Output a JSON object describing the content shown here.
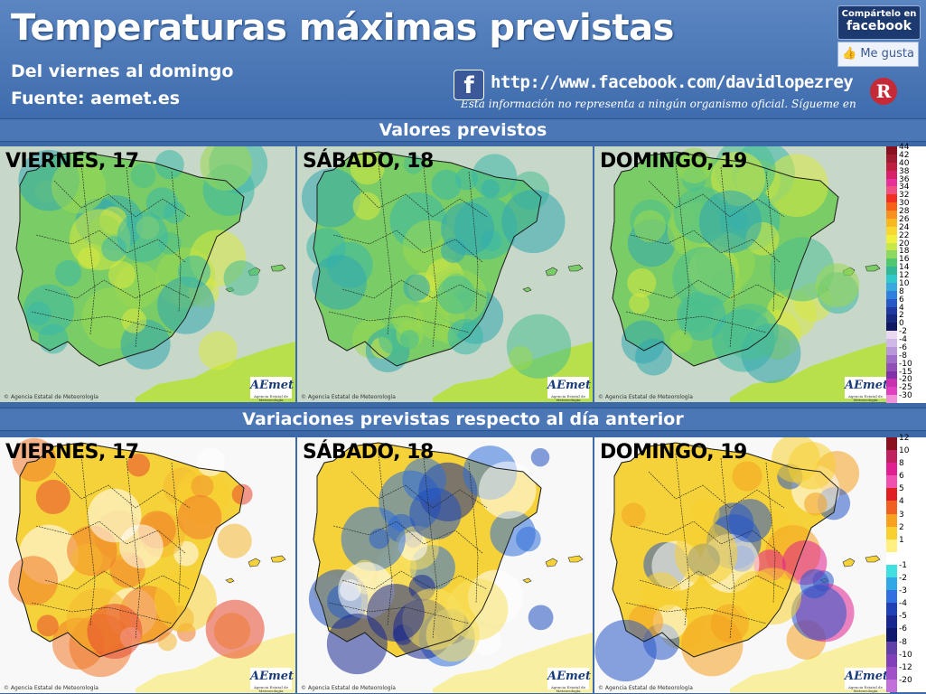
{
  "header": {
    "title": "Temperaturas máximas previstas",
    "subtitle": "Del viernes al domingo",
    "source": "Fuente: aemet.es",
    "facebook_url": "http://www.facebook.com/davidlopezrey",
    "disclaimer": "Esta información no representa a ningún organismo oficial. Sígueme en",
    "share_top": "Compártelo en",
    "share_bottom": "facebook",
    "like_label": "Me gusta",
    "fb_icon_letter": "f",
    "logo_letter": "R"
  },
  "sections": {
    "forecast_title": "Valores previstos",
    "variation_title": "Variaciones previstas respecto al día anterior"
  },
  "panels": {
    "forecast": [
      {
        "day": "VIERNES, 17",
        "credit": "© Agencia Estatal de Meteorología",
        "brand": "AEmet",
        "brand_sub": "Agencia Estatal de Meteorología"
      },
      {
        "day": "SÁBADO, 18",
        "credit": "© Agencia Estatal de Meteorología",
        "brand": "AEmet",
        "brand_sub": "Agencia Estatal de Meteorología"
      },
      {
        "day": "DOMINGO, 19",
        "credit": "© Agencia Estatal de Meteorología",
        "brand": "AEmet",
        "brand_sub": "Agencia Estatal de Meteorología"
      }
    ],
    "variation": [
      {
        "day": "VIERNES, 17",
        "credit": "© Agencia Estatal de Meteorología",
        "brand": "AEmet",
        "brand_sub": "Agencia Estatal de Meteorología"
      },
      {
        "day": "SÁBADO, 18",
        "credit": "© Agencia Estatal de Meteorología",
        "brand": "AEmet",
        "brand_sub": "Agencia Estatal de Meteorología"
      },
      {
        "day": "DOMINGO, 19",
        "credit": "© Agencia Estatal de Meteorología",
        "brand": "AEmet",
        "brand_sub": "Agencia Estatal de Meteorología"
      }
    ]
  },
  "legend_forecast": [
    {
      "label": "44",
      "color": "#8a1020"
    },
    {
      "label": "42",
      "color": "#a01a30"
    },
    {
      "label": "40",
      "color": "#c02040"
    },
    {
      "label": "38",
      "color": "#d8206a"
    },
    {
      "label": "36",
      "color": "#e8309a"
    },
    {
      "label": "34",
      "color": "#f05080"
    },
    {
      "label": "32",
      "color": "#f03020"
    },
    {
      "label": "30",
      "color": "#f86018"
    },
    {
      "label": "28",
      "color": "#f89020"
    },
    {
      "label": "26",
      "color": "#f8b820"
    },
    {
      "label": "24",
      "color": "#f8d830"
    },
    {
      "label": "22",
      "color": "#f0f040"
    },
    {
      "label": "20",
      "color": "#c8e848"
    },
    {
      "label": "18",
      "color": "#8cd860"
    },
    {
      "label": "16",
      "color": "#50c870"
    },
    {
      "label": "14",
      "color": "#30b898"
    },
    {
      "label": "12",
      "color": "#30c8c8"
    },
    {
      "label": "10",
      "color": "#38a8e0"
    },
    {
      "label": "8",
      "color": "#3080e0"
    },
    {
      "label": "6",
      "color": "#2858c8"
    },
    {
      "label": "4",
      "color": "#2038a0"
    },
    {
      "label": "2",
      "color": "#182880"
    },
    {
      "label": "0",
      "color": "#101860"
    },
    {
      "label": "-2",
      "color": "#e8d8f0"
    },
    {
      "label": "-4",
      "color": "#d0b8e8"
    },
    {
      "label": "-6",
      "color": "#b898d8"
    },
    {
      "label": "-8",
      "color": "#a070c8"
    },
    {
      "label": "-10",
      "color": "#9050b8"
    },
    {
      "label": "-15",
      "color": "#8030a8"
    },
    {
      "label": "-20",
      "color": "#c830b0"
    },
    {
      "label": "-25",
      "color": "#e040c0"
    },
    {
      "label": "-30",
      "color": "#f090d8"
    }
  ],
  "legend_variation": [
    {
      "label": "12",
      "color": "#8a1020"
    },
    {
      "label": "10",
      "color": "#c02060"
    },
    {
      "label": "8",
      "color": "#e02090"
    },
    {
      "label": "6",
      "color": "#f050b0"
    },
    {
      "label": "5",
      "color": "#e02020"
    },
    {
      "label": "4",
      "color": "#f06020"
    },
    {
      "label": "3",
      "color": "#f8a020"
    },
    {
      "label": "2",
      "color": "#f8d030"
    },
    {
      "label": "1",
      "color": "#fff080"
    },
    {
      "label": "",
      "color": "#ffffff"
    },
    {
      "label": "-1",
      "color": "#40e0e0"
    },
    {
      "label": "-2",
      "color": "#30a8e8"
    },
    {
      "label": "-3",
      "color": "#3070e0"
    },
    {
      "label": "-4",
      "color": "#2040b8"
    },
    {
      "label": "-5",
      "color": "#182890"
    },
    {
      "label": "-6",
      "color": "#101870"
    },
    {
      "label": "-8",
      "color": "#6040a8"
    },
    {
      "label": "-10",
      "color": "#8040b8"
    },
    {
      "label": "-12",
      "color": "#a050c8"
    },
    {
      "label": "-20",
      "color": "#c070d8"
    }
  ]
}
